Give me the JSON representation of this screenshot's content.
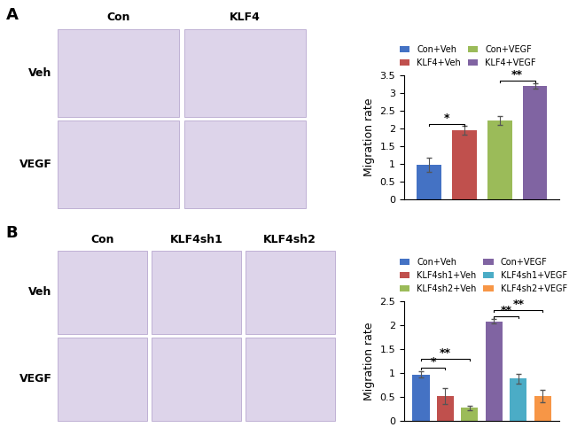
{
  "chart_data": [
    {
      "type": "bar",
      "panel_label": "A",
      "image_column_labels": [
        "Con",
        "KLF4"
      ],
      "image_row_labels": [
        "Veh",
        "VEGF"
      ],
      "y_label": "Migration rate",
      "ylim": [
        0,
        3.5
      ],
      "yticks": [
        0,
        0.5,
        1,
        1.5,
        2,
        2.5,
        3,
        3.5
      ],
      "tick_labels": "y",
      "legend": "top",
      "series": [
        {
          "name": "Con+Veh",
          "color": "#4472c4",
          "values": [
            0.98
          ],
          "errors": [
            0.2
          ]
        },
        {
          "name": "KLF4+Veh",
          "color": "#c0504d",
          "values": [
            1.95
          ],
          "errors": [
            0.13
          ]
        },
        {
          "name": "Con+VEGF",
          "color": "#9bbb59",
          "values": [
            2.22
          ],
          "errors": [
            0.12
          ]
        },
        {
          "name": "KLF4+VEGF",
          "color": "#8064a2",
          "values": [
            3.2
          ],
          "errors": [
            0.07
          ]
        }
      ],
      "annotations": [
        {
          "from": 0,
          "to": 1,
          "y": 2.12,
          "label": "*"
        },
        {
          "from": 2,
          "to": 3,
          "y": 3.36,
          "label": "**"
        }
      ]
    },
    {
      "type": "bar",
      "panel_label": "B",
      "image_column_labels": [
        "Con",
        "KLF4sh1",
        "KLF4sh2"
      ],
      "image_row_labels": [
        "Veh",
        "VEGF"
      ],
      "y_label": "Migration rate",
      "ylim": [
        0,
        2.5
      ],
      "yticks": [
        0,
        0.5,
        1,
        1.5,
        2,
        2.5
      ],
      "tick_labels": "y",
      "legend": "top",
      "series": [
        {
          "name": "Con+Veh",
          "color": "#4472c4",
          "values": [
            0.97
          ],
          "errors": [
            0.07
          ]
        },
        {
          "name": "KLF4sh1+Veh",
          "color": "#c0504d",
          "values": [
            0.52
          ],
          "errors": [
            0.16
          ]
        },
        {
          "name": "KLF4sh2+Veh",
          "color": "#9bbb59",
          "values": [
            0.27
          ],
          "errors": [
            0.05
          ]
        },
        {
          "name": "Con+VEGF",
          "color": "#8064a2",
          "values": [
            2.08
          ],
          "errors": [
            0.05
          ]
        },
        {
          "name": "KLF4sh1+VEGF",
          "color": "#4bacc6",
          "values": [
            0.88
          ],
          "errors": [
            0.1
          ]
        },
        {
          "name": "KLF4sh2+VEGF",
          "color": "#f79646",
          "values": [
            0.52
          ],
          "errors": [
            0.13
          ]
        }
      ],
      "annotations": [
        {
          "from": 0,
          "to": 1,
          "y": 1.12,
          "label": "*"
        },
        {
          "from": 0,
          "to": 2,
          "y": 1.3,
          "label": "**"
        },
        {
          "from": 3,
          "to": 4,
          "y": 2.18,
          "label": "**"
        },
        {
          "from": 3,
          "to": 5,
          "y": 2.32,
          "label": "**"
        }
      ]
    }
  ]
}
